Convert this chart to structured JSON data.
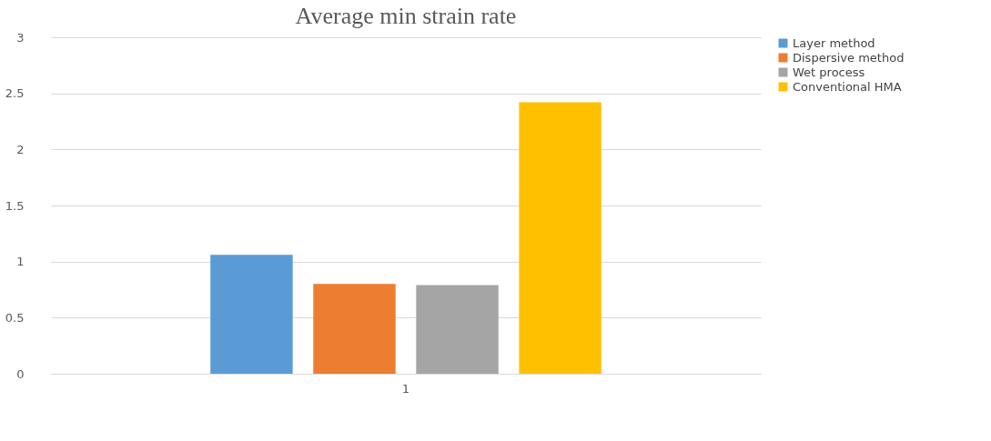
{
  "chart_data": {
    "type": "bar",
    "title": "Average min strain rate",
    "categories": [
      "1"
    ],
    "series": [
      {
        "name": "Layer method",
        "color": "#5b9bd5",
        "values": [
          1.06
        ]
      },
      {
        "name": "Dispersive method",
        "color": "#ed7d31",
        "values": [
          0.8
        ]
      },
      {
        "name": "Wet process",
        "color": "#a5a5a5",
        "values": [
          0.79
        ]
      },
      {
        "name": "Conventional HMA",
        "color": "#ffc000",
        "values": [
          2.42
        ]
      }
    ],
    "ylim": [
      0,
      3
    ],
    "yticks": [
      0,
      0.5,
      1,
      1.5,
      2,
      2.5,
      3
    ],
    "grid": "y",
    "legend": "right"
  }
}
